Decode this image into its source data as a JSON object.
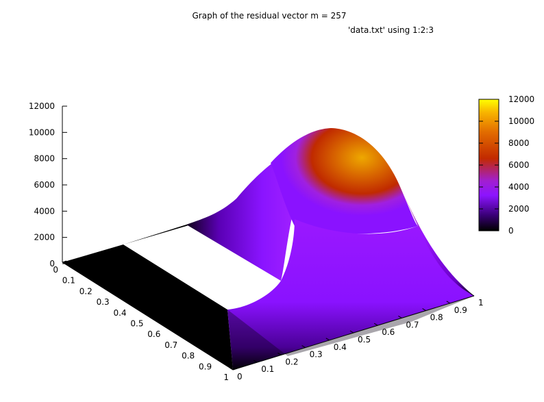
{
  "chart_data": {
    "type": "surface",
    "title": "Graph of the residual vector m = 257",
    "key": "'data.txt' using 1:2:3",
    "xlabel": "",
    "ylabel": "",
    "zlabel": "",
    "x_ticks": [
      "0",
      "0.1",
      "0.2",
      "0.3",
      "0.4",
      "0.5",
      "0.6",
      "0.7",
      "0.8",
      "0.9",
      "1"
    ],
    "y_ticks": [
      "0",
      "0.1",
      "0.2",
      "0.3",
      "0.4",
      "0.5",
      "0.6",
      "0.7",
      "0.8",
      "0.9",
      "1"
    ],
    "z_ticks": [
      "0",
      "2000",
      "4000",
      "6000",
      "8000",
      "10000",
      "12000"
    ],
    "xlim": [
      0,
      1
    ],
    "ylim": [
      0,
      1
    ],
    "zlim": [
      0,
      12000
    ],
    "colorbar": {
      "range": [
        0,
        12000
      ],
      "ticks": [
        "0",
        "2000",
        "4000",
        "6000",
        "8000",
        "10000",
        "12000"
      ],
      "palette": [
        "#000000",
        "#3a0078",
        "#8c14ff",
        "#a21fd0",
        "#c22a00",
        "#e26c00",
        "#f8b400",
        "#ffff00"
      ]
    },
    "surface": {
      "description_points": [
        {
          "x": 0.0,
          "y": 0.0,
          "z": 0
        },
        {
          "x": 1.0,
          "y": 0.0,
          "z": 0
        },
        {
          "x": 0.0,
          "y": 1.0,
          "z": 0
        },
        {
          "x": 1.0,
          "y": 1.0,
          "z": 0
        },
        {
          "x": 0.5,
          "y": 0.5,
          "z": 6000
        },
        {
          "x": 0.75,
          "y": 0.75,
          "z": 10400
        },
        {
          "x": 0.3,
          "y": 0.3,
          "z": 0
        }
      ],
      "peak": {
        "x": 0.75,
        "y": 0.75,
        "z": 10400
      }
    },
    "legend_position": "top-right",
    "grid": false
  }
}
